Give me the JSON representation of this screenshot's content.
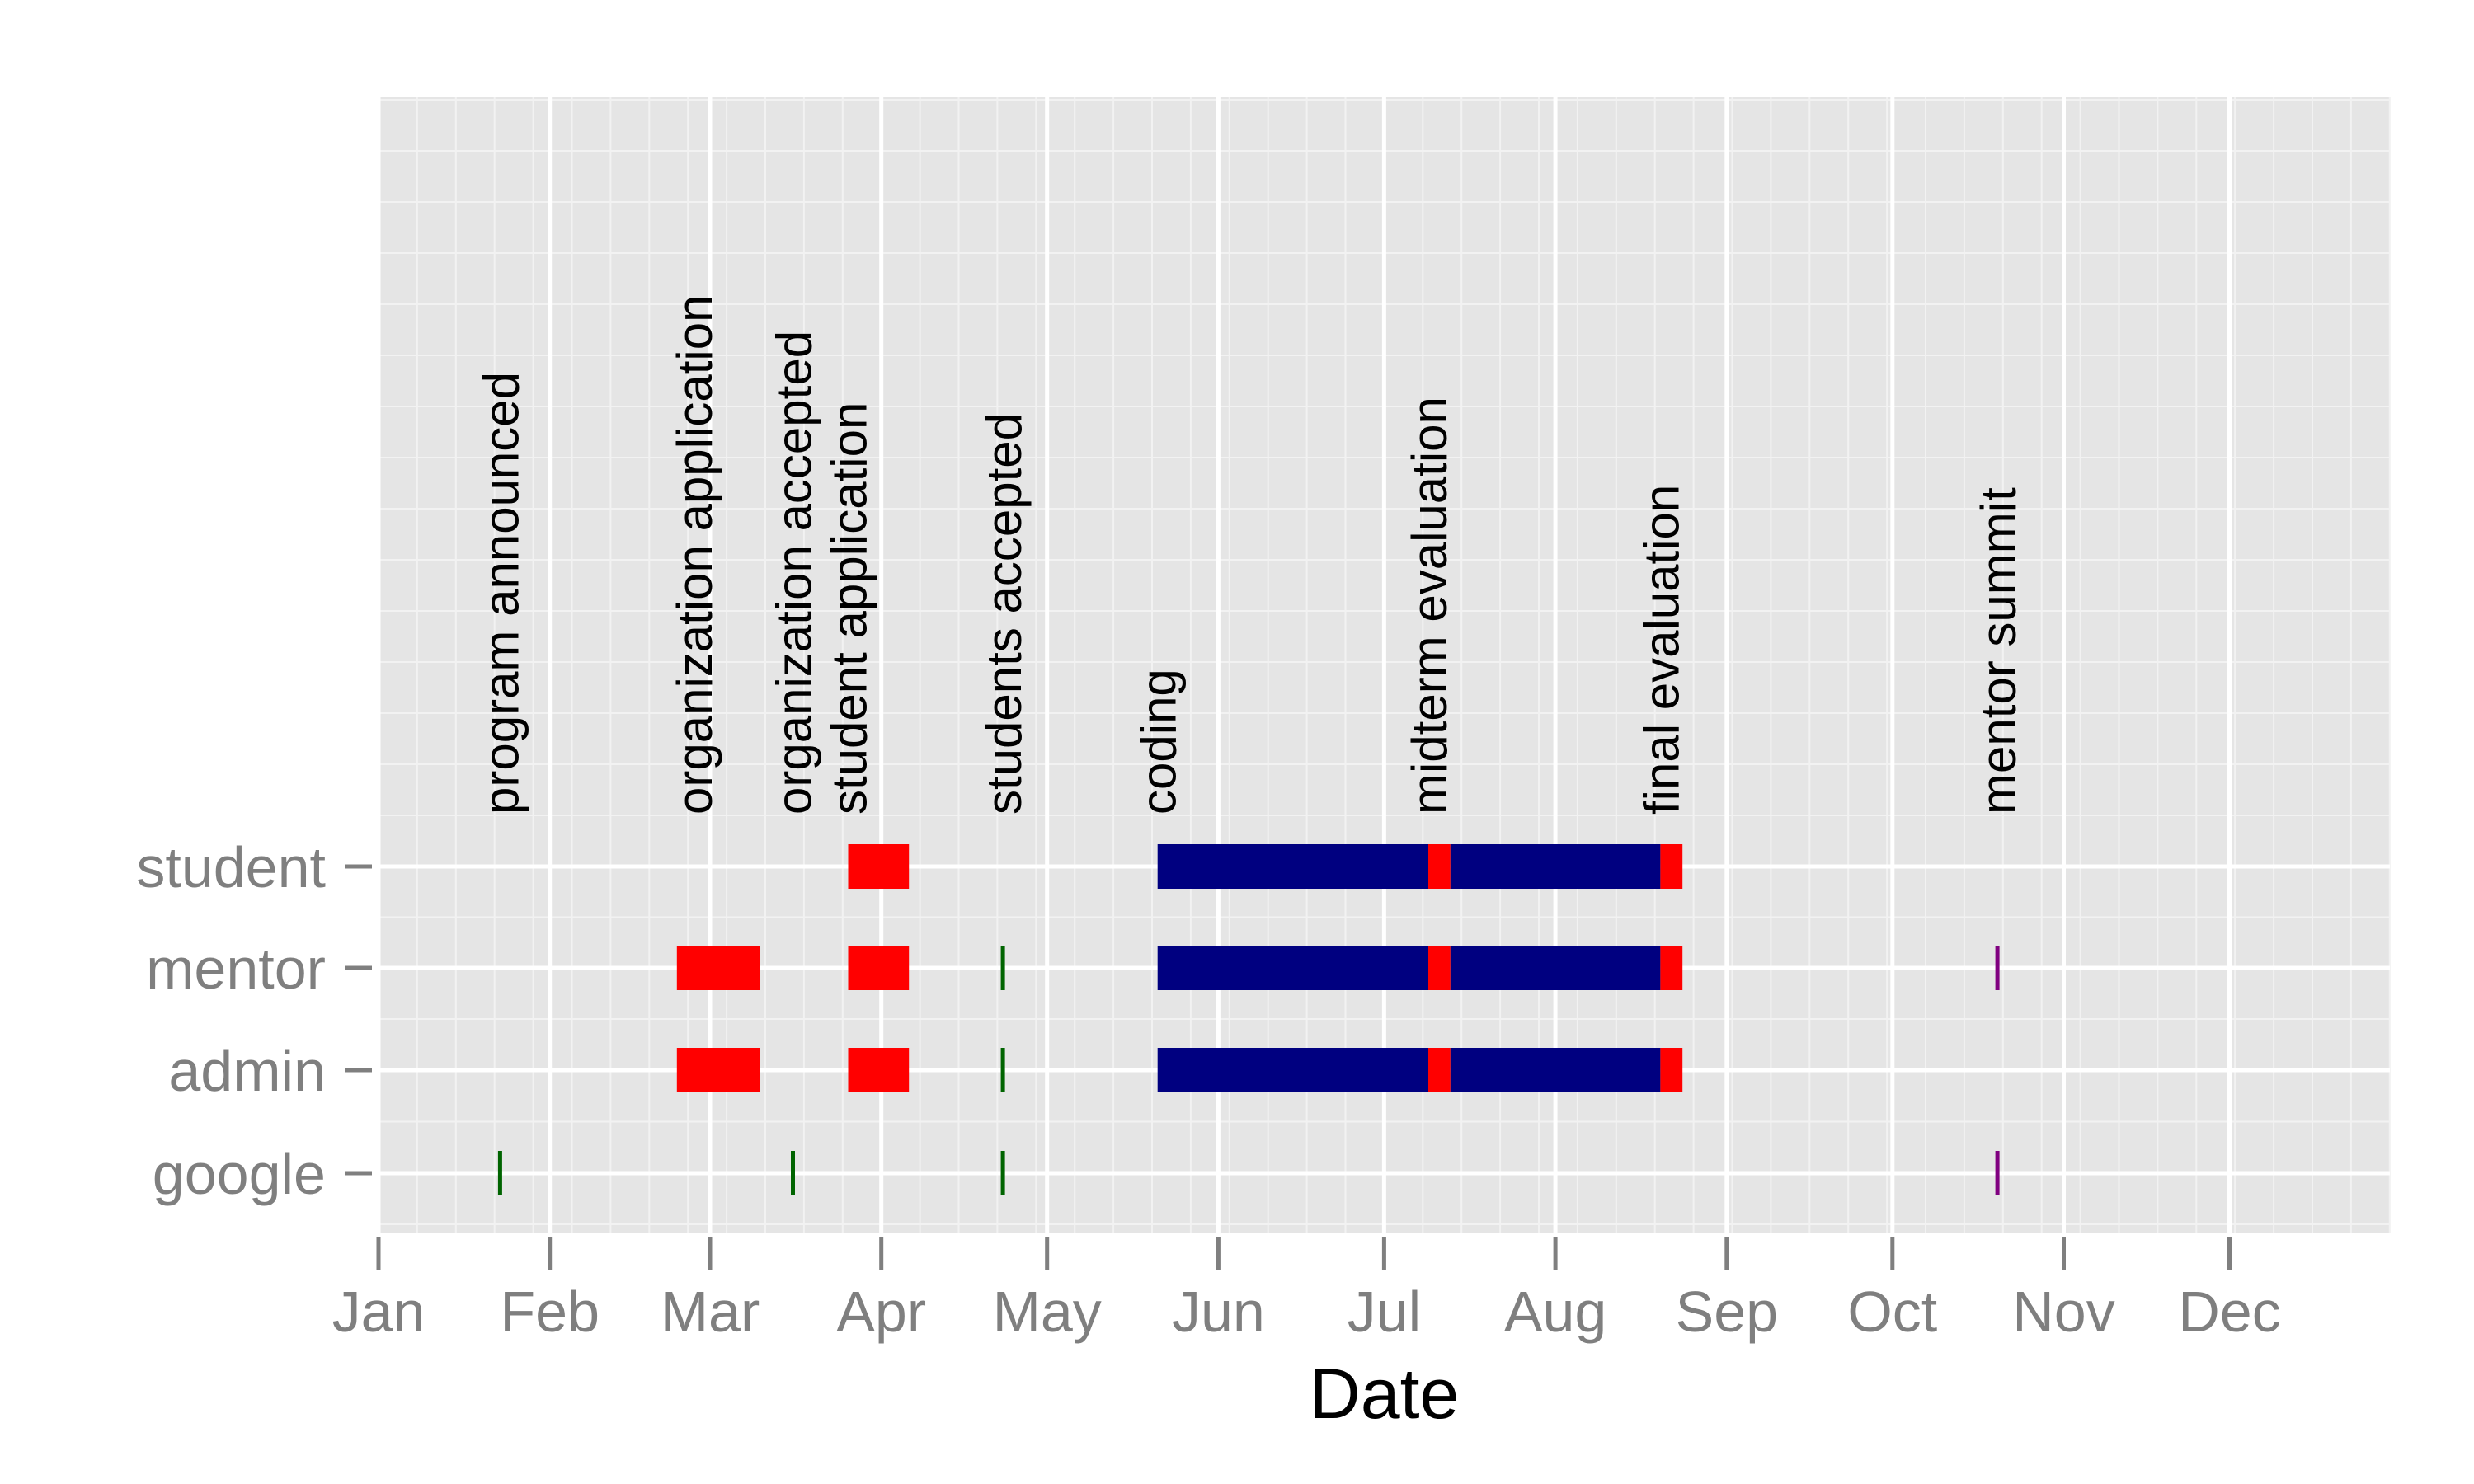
{
  "chart_data": {
    "type": "gantt",
    "xlabel": "Date",
    "x_scale": "date",
    "xlim": [
      "2012-01-01",
      "2012-12-31"
    ],
    "x_ticks": [
      "Jan",
      "Feb",
      "Mar",
      "Apr",
      "May",
      "Jun",
      "Jul",
      "Aug",
      "Sep",
      "Oct",
      "Nov",
      "Dec"
    ],
    "rows": [
      "student",
      "mentor",
      "admin",
      "google"
    ],
    "grid": true,
    "colors": {
      "panel": "#e5e5e5",
      "grid_major": "#ffffff",
      "grid_minor": "#f2f2f2",
      "period": "#ff0000",
      "coding": "#000080",
      "milestone_green": "#006400",
      "milestone_purple": "#800080",
      "tick_text": "#7f7f7f"
    },
    "events": [
      {
        "label": "program announced",
        "date": "2012-01-23"
      },
      {
        "label": "organization application",
        "date": "2012-02-27"
      },
      {
        "label": "organization accepted",
        "date": "2012-03-16"
      },
      {
        "label": "student application",
        "date": "2012-03-26"
      },
      {
        "label": "students accepted",
        "date": "2012-04-23"
      },
      {
        "label": "coding",
        "date": "2012-05-21"
      },
      {
        "label": "midterm evaluation",
        "date": "2012-07-09"
      },
      {
        "label": "final evaluation",
        "date": "2012-08-20"
      },
      {
        "label": "mentor summit",
        "date": "2012-10-20"
      }
    ],
    "periods": [
      {
        "row": "student",
        "start": "2012-03-26",
        "end": "2012-04-06",
        "kind": "period"
      },
      {
        "row": "student",
        "start": "2012-05-21",
        "end": "2012-07-09",
        "kind": "coding"
      },
      {
        "row": "student",
        "start": "2012-07-09",
        "end": "2012-07-13",
        "kind": "period"
      },
      {
        "row": "student",
        "start": "2012-07-13",
        "end": "2012-08-20",
        "kind": "coding"
      },
      {
        "row": "student",
        "start": "2012-08-20",
        "end": "2012-08-24",
        "kind": "period"
      },
      {
        "row": "mentor",
        "start": "2012-02-24",
        "end": "2012-03-10",
        "kind": "period"
      },
      {
        "row": "mentor",
        "start": "2012-03-26",
        "end": "2012-04-06",
        "kind": "period"
      },
      {
        "row": "mentor",
        "start": "2012-05-21",
        "end": "2012-07-09",
        "kind": "coding"
      },
      {
        "row": "mentor",
        "start": "2012-07-09",
        "end": "2012-07-13",
        "kind": "period"
      },
      {
        "row": "mentor",
        "start": "2012-07-13",
        "end": "2012-08-20",
        "kind": "coding"
      },
      {
        "row": "mentor",
        "start": "2012-08-20",
        "end": "2012-08-24",
        "kind": "period"
      },
      {
        "row": "admin",
        "start": "2012-02-24",
        "end": "2012-03-10",
        "kind": "period"
      },
      {
        "row": "admin",
        "start": "2012-03-26",
        "end": "2012-04-06",
        "kind": "period"
      },
      {
        "row": "admin",
        "start": "2012-05-21",
        "end": "2012-07-09",
        "kind": "coding"
      },
      {
        "row": "admin",
        "start": "2012-07-09",
        "end": "2012-07-13",
        "kind": "period"
      },
      {
        "row": "admin",
        "start": "2012-07-13",
        "end": "2012-08-20",
        "kind": "coding"
      },
      {
        "row": "admin",
        "start": "2012-08-20",
        "end": "2012-08-24",
        "kind": "period"
      }
    ],
    "milestones": [
      {
        "row": "mentor",
        "date": "2012-04-23",
        "color": "milestone_green"
      },
      {
        "row": "mentor",
        "date": "2012-10-20",
        "color": "milestone_purple"
      },
      {
        "row": "admin",
        "date": "2012-04-23",
        "color": "milestone_green"
      },
      {
        "row": "google",
        "date": "2012-01-23",
        "color": "milestone_green"
      },
      {
        "row": "google",
        "date": "2012-03-16",
        "color": "milestone_green"
      },
      {
        "row": "google",
        "date": "2012-04-23",
        "color": "milestone_green"
      },
      {
        "row": "google",
        "date": "2012-10-20",
        "color": "milestone_purple"
      }
    ]
  }
}
